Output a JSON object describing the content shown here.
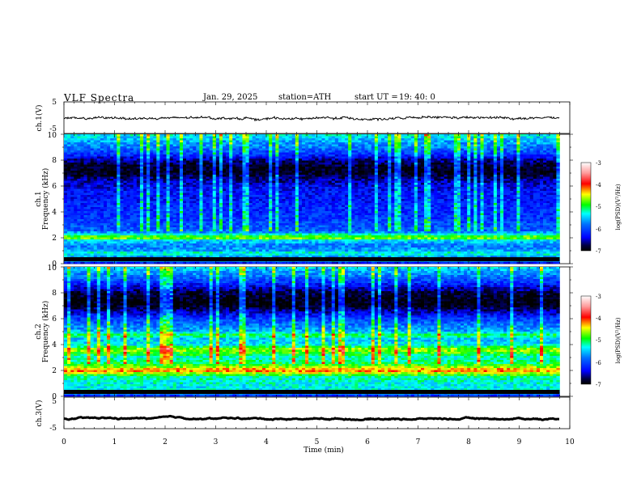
{
  "header": {
    "title": "VLF  Spectra",
    "date": "Jan. 29, 2025",
    "station": "station=ATH",
    "start_ut_label": "start  UT  =",
    "start_ut_value": "19: 40: 0"
  },
  "chart_data": [
    {
      "id": "ch1-voltage",
      "type": "line",
      "ylabel": "ch.1(V)",
      "ylim": [
        -5,
        5
      ],
      "yticks": [
        "5",
        "-5"
      ],
      "xlim": [
        0,
        10
      ],
      "x_end": 9.8,
      "series": [
        {
          "level": -0.2,
          "noise": 0.6,
          "color": "#000000"
        }
      ]
    },
    {
      "id": "ch1-spectrogram",
      "type": "heatmap",
      "ylabel_channel": "ch.1",
      "ylabel": "Frequency  (kHz)",
      "ylim": [
        0,
        10
      ],
      "yticks": [
        "0",
        "2",
        "4",
        "6",
        "8",
        "10"
      ],
      "xlim": [
        0,
        10
      ],
      "x_end": 9.8,
      "profile_freq_khz": [
        0,
        0.2,
        0.5,
        0.8,
        1.0,
        1.4,
        1.8,
        2.0,
        2.2,
        2.5,
        3.0,
        3.5,
        4.0,
        4.5,
        5.0,
        5.5,
        6.0,
        6.5,
        7.0,
        7.5,
        8.0,
        8.5,
        9.0,
        9.5,
        10.0
      ],
      "profile_log_psd": [
        -6.9,
        -5.3,
        -5.7,
        -5.2,
        -5.6,
        -5.8,
        -5.4,
        -4.6,
        -5.1,
        -5.9,
        -6.0,
        -6.1,
        -6.2,
        -6.2,
        -6.3,
        -6.3,
        -6.4,
        -6.6,
        -6.95,
        -6.9,
        -6.6,
        -6.1,
        -5.8,
        -5.6,
        -5.3
      ],
      "colorbar": {
        "label": "log(PSD)(V²/Hz)",
        "range": [
          -7,
          -3
        ],
        "ticks": [
          "-3",
          "-4",
          "-5",
          "-6",
          "-7"
        ]
      }
    },
    {
      "id": "ch2-spectrogram",
      "type": "heatmap",
      "ylabel_channel": "ch.2",
      "ylabel": "Frequency  (kHz)",
      "ylim": [
        0,
        10
      ],
      "yticks": [
        "0",
        "2",
        "4",
        "6",
        "8",
        "10"
      ],
      "xlim": [
        0,
        10
      ],
      "x_end": 9.8,
      "profile_freq_khz": [
        0,
        0.3,
        0.6,
        1.0,
        1.5,
        2.0,
        2.2,
        2.5,
        3.0,
        3.4,
        3.6,
        4.0,
        4.5,
        4.7,
        5.0,
        5.5,
        6.0,
        6.5,
        7.0,
        7.5,
        8.0,
        8.5,
        9.0,
        9.5,
        10.0
      ],
      "profile_log_psd": [
        -6.5,
        -5.2,
        -5.4,
        -5.3,
        -5.2,
        -4.1,
        -4.5,
        -5.0,
        -5.3,
        -4.8,
        -4.6,
        -5.4,
        -5.5,
        -4.9,
        -5.6,
        -5.8,
        -6.1,
        -6.5,
        -6.95,
        -6.95,
        -6.8,
        -6.4,
        -6.0,
        -5.7,
        -5.4
      ],
      "colorbar": {
        "label": "log(PSD)(V²/Hz)",
        "range": [
          -7,
          -3
        ],
        "ticks": [
          "-3",
          "-4",
          "-5",
          "-6",
          "-7"
        ]
      }
    },
    {
      "id": "ch3-voltage",
      "type": "line",
      "ylabel": "ch.3(V)",
      "ylim": [
        -5,
        5
      ],
      "yticks": [
        "5",
        "-5"
      ],
      "xlim": [
        0,
        10
      ],
      "x_end": 9.8,
      "xlabel": "Time  (min)",
      "xticks": [
        "0",
        "1",
        "2",
        "3",
        "4",
        "5",
        "6",
        "7",
        "8",
        "9",
        "10"
      ],
      "series": [
        {
          "level": -1.8,
          "noise": 0.1,
          "color": "#000000"
        }
      ]
    }
  ]
}
